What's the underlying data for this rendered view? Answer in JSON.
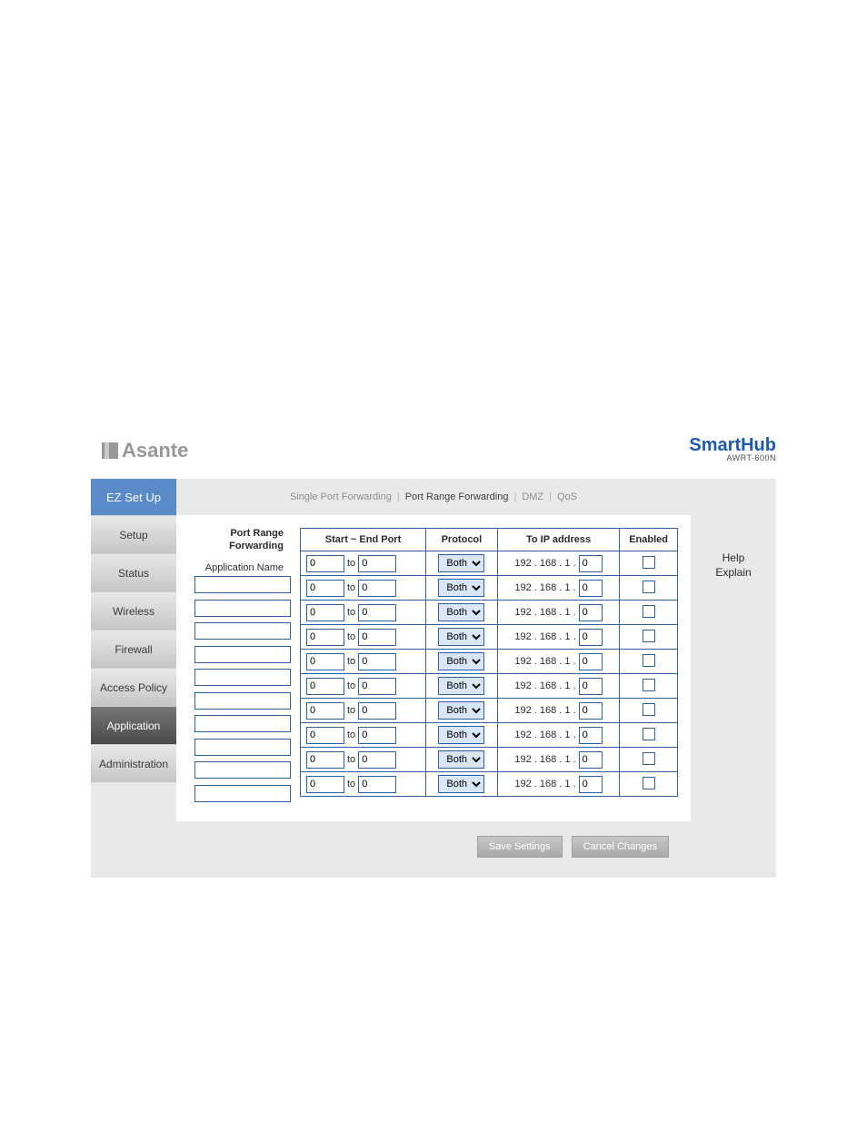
{
  "brand": {
    "logo_text": "Asante",
    "product": "SmartHub",
    "model": "AWRT-600N"
  },
  "colors": {
    "accent": "#2f5fa3",
    "ez_bg": "#5b8ac8",
    "panel_bg": "#ffffff",
    "shell_bg": "#e9e9e9"
  },
  "nav": {
    "ez": "EZ Set Up",
    "items": [
      {
        "label": "Setup",
        "active": false
      },
      {
        "label": "Status",
        "active": false
      },
      {
        "label": "Wireless",
        "active": false
      },
      {
        "label": "Firewall",
        "active": false
      },
      {
        "label": "Access Policy",
        "active": false
      },
      {
        "label": "Application",
        "active": true
      },
      {
        "label": "Administration",
        "active": false
      }
    ]
  },
  "subnav": {
    "items": [
      {
        "label": "Single Port Forwarding",
        "active": false
      },
      {
        "label": "Port Range Forwarding",
        "active": true
      },
      {
        "label": "DMZ",
        "active": false
      },
      {
        "label": "QoS",
        "active": false
      }
    ],
    "separator": "|"
  },
  "section": {
    "title_line1": "Port Range",
    "title_line2": "Forwarding",
    "app_name_label": "Application Name"
  },
  "table": {
    "headers": {
      "range": "Start ~ End Port",
      "protocol": "Protocol",
      "ip": "To IP address",
      "enabled": "Enabled"
    },
    "to_word": "to",
    "ip_prefix": "192 . 168 . 1 .",
    "protocol_selected": "Both",
    "rows": [
      {
        "app": "",
        "start": "0",
        "end": "0",
        "protocol": "Both",
        "ip_last": "0",
        "enabled": false
      },
      {
        "app": "",
        "start": "0",
        "end": "0",
        "protocol": "Both",
        "ip_last": "0",
        "enabled": false
      },
      {
        "app": "",
        "start": "0",
        "end": "0",
        "protocol": "Both",
        "ip_last": "0",
        "enabled": false
      },
      {
        "app": "",
        "start": "0",
        "end": "0",
        "protocol": "Both",
        "ip_last": "0",
        "enabled": false
      },
      {
        "app": "",
        "start": "0",
        "end": "0",
        "protocol": "Both",
        "ip_last": "0",
        "enabled": false
      },
      {
        "app": "",
        "start": "0",
        "end": "0",
        "protocol": "Both",
        "ip_last": "0",
        "enabled": false
      },
      {
        "app": "",
        "start": "0",
        "end": "0",
        "protocol": "Both",
        "ip_last": "0",
        "enabled": false
      },
      {
        "app": "",
        "start": "0",
        "end": "0",
        "protocol": "Both",
        "ip_last": "0",
        "enabled": false
      },
      {
        "app": "",
        "start": "0",
        "end": "0",
        "protocol": "Both",
        "ip_last": "0",
        "enabled": false
      },
      {
        "app": "",
        "start": "0",
        "end": "0",
        "protocol": "Both",
        "ip_last": "0",
        "enabled": false
      }
    ]
  },
  "buttons": {
    "save": "Save Settings",
    "cancel": "Cancel Changes"
  },
  "help": {
    "line1": "Help",
    "line2": "Explain"
  }
}
